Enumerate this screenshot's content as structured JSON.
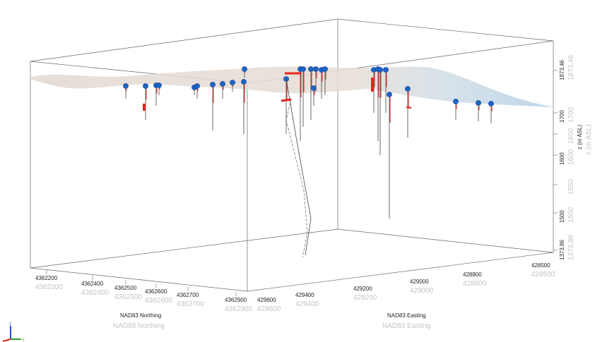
{
  "scene": {
    "northing_axis": {
      "title": "NAD83 Northing",
      "ticks": [
        "4362200",
        "4362400",
        "4362500",
        "4362600",
        "4362700",
        "4362900"
      ]
    },
    "easting_axis": {
      "title": "NAD83 Easting",
      "ticks": [
        "429600",
        "429400",
        "429200",
        "429000",
        "428800",
        "428500"
      ]
    },
    "z_axis": {
      "title": "z (m ASL)",
      "ticks": [
        "1373.86",
        "1500",
        "1550",
        "1600",
        "1650",
        "1700",
        "1873.46"
      ]
    },
    "orientation_gizmo": {
      "z": "z",
      "y": "Y"
    },
    "colors": {
      "collar": "#1f63c6",
      "interval": "#e8231e",
      "surface": "#e6ddd6",
      "surface_blue": "#b9d3e6",
      "box": "#555555"
    }
  }
}
